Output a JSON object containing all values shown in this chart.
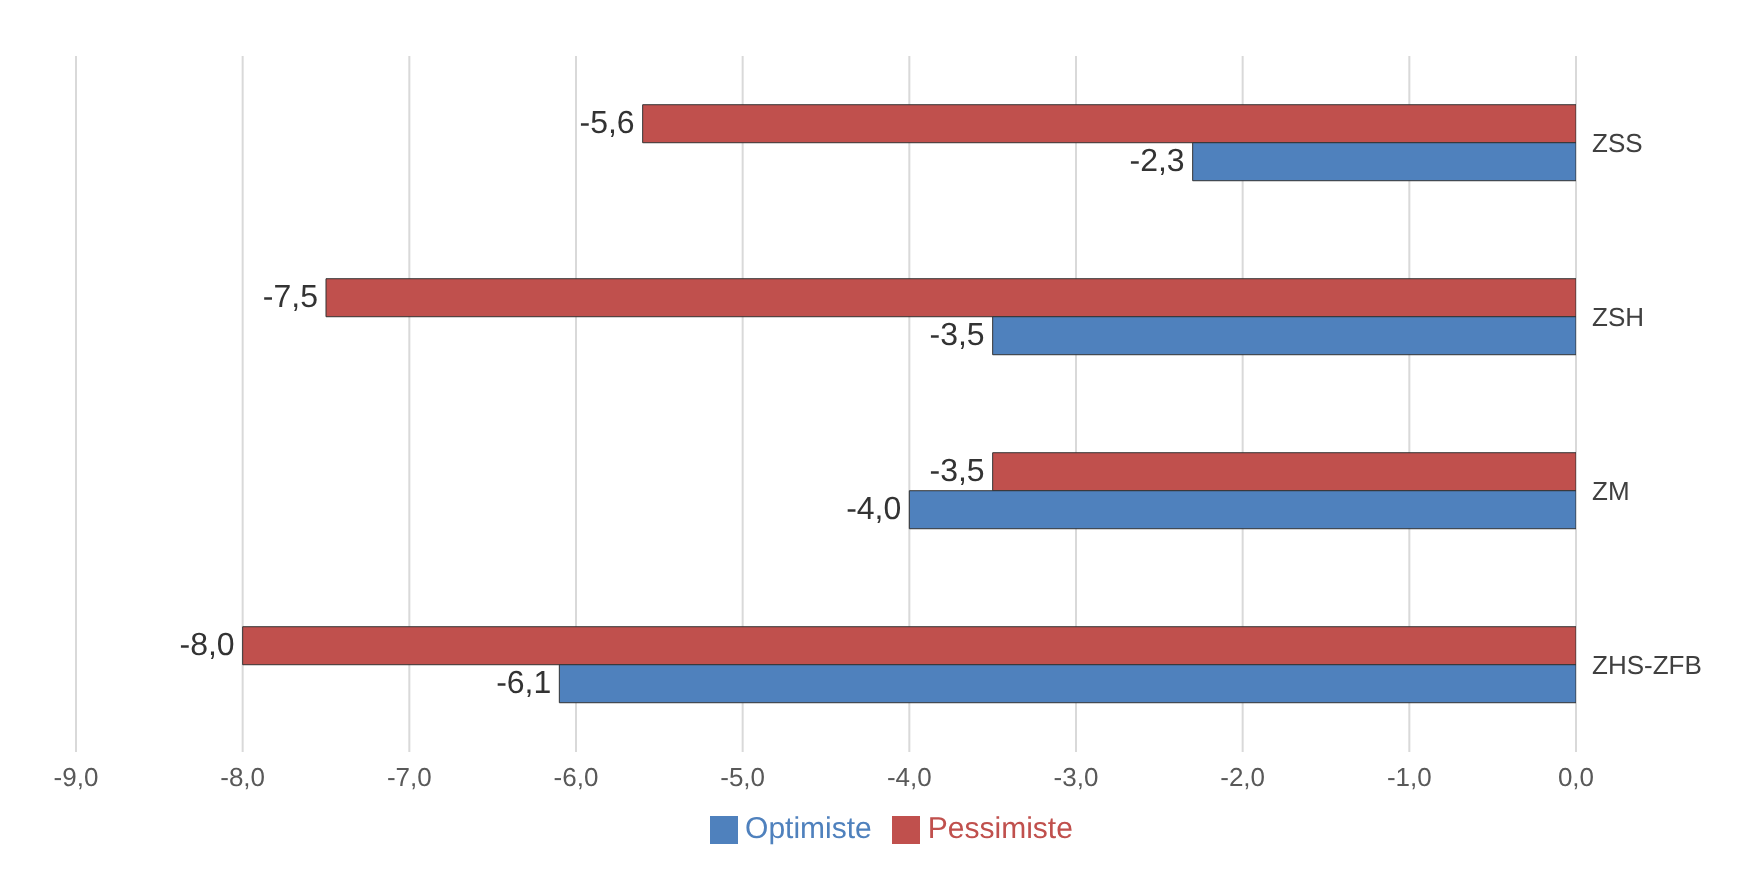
{
  "chart_data": {
    "type": "bar",
    "orientation": "horizontal",
    "categories": [
      "ZSS",
      "ZSH",
      "ZM",
      "ZHS-ZFB"
    ],
    "series": [
      {
        "name": "Pessimiste",
        "color": "#c0504d",
        "values": [
          -5.6,
          -7.5,
          -3.5,
          -8.0
        ],
        "value_labels": [
          "-5,6",
          "-7,5",
          "-3,5",
          "-8,0"
        ]
      },
      {
        "name": "Optimiste",
        "color": "#4f81bd",
        "values": [
          -2.3,
          -3.5,
          -4.0,
          -6.1
        ],
        "value_labels": [
          "-2,3",
          "-3,5",
          "-4,0",
          "-6,1"
        ]
      }
    ],
    "xlim": [
      -9,
      0
    ],
    "xticks": [
      {
        "value": -9,
        "label": "-9,0"
      },
      {
        "value": -8,
        "label": "-8,0"
      },
      {
        "value": -7,
        "label": "-7,0"
      },
      {
        "value": -6,
        "label": "-6,0"
      },
      {
        "value": -5,
        "label": "-5,0"
      },
      {
        "value": -4,
        "label": "-4,0"
      },
      {
        "value": -3,
        "label": "-3,0"
      },
      {
        "value": -2,
        "label": "-2,0"
      },
      {
        "value": -1,
        "label": "-1,0"
      },
      {
        "value": 0,
        "label": "0,0"
      }
    ],
    "grid": "x",
    "legend": "bottom"
  }
}
